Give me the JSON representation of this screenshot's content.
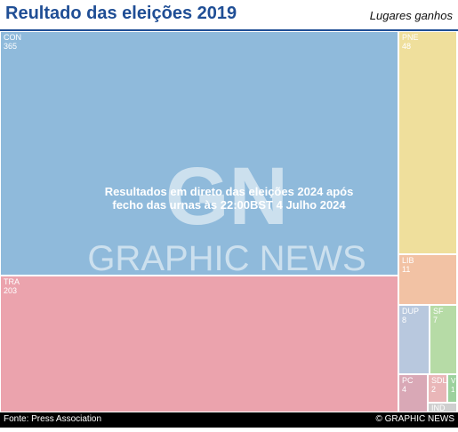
{
  "header": {
    "title": "Reultado das eleições 2019",
    "subtitle": "Lugares ganhos"
  },
  "footer": {
    "source": "Fonte: Press Association",
    "credit": "© GRAPHIC NEWS"
  },
  "watermark": {
    "logo_text": "GN",
    "brand": "GRAPHIC NEWS",
    "notice": "Resultados em direto das eleições 2024 após fecho das urnas às 22:00BST 4 Julho 2024"
  },
  "chart_data": {
    "type": "treemap",
    "title": "Reultado das eleições 2019",
    "subtitle": "Lugares ganhos",
    "series": [
      {
        "name": "CON",
        "value": 365,
        "color": "#8fbadb"
      },
      {
        "name": "TRA",
        "value": 203,
        "color": "#eba3ad"
      },
      {
        "name": "PNE",
        "value": 48,
        "color": "#efdf9c"
      },
      {
        "name": "LIB",
        "value": 11,
        "color": "#f2c2a4"
      },
      {
        "name": "DUP",
        "value": 8,
        "color": "#b8c8de"
      },
      {
        "name": "SF",
        "value": 7,
        "color": "#b6dba6"
      },
      {
        "name": "PC",
        "value": 4,
        "color": "#d9a8b6"
      },
      {
        "name": "SDLP",
        "label": "SDL",
        "value": 2,
        "color": "#e9b6b8"
      },
      {
        "name": "V",
        "value": 1,
        "color": "#9cd19d"
      },
      {
        "name": "IND",
        "value": null,
        "color": "#cfcfcf"
      }
    ]
  }
}
